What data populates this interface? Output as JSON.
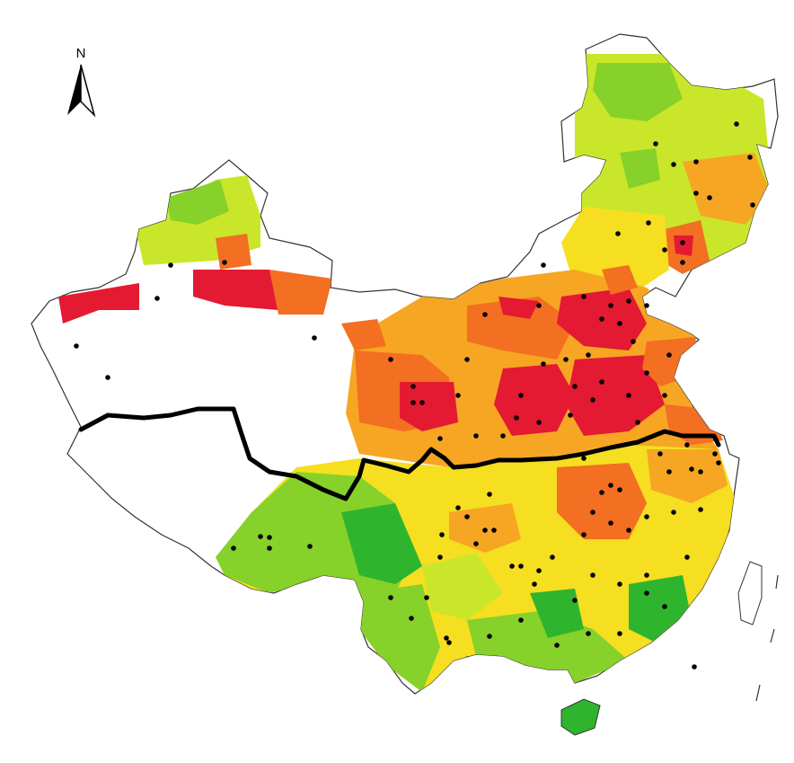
{
  "map": {
    "compass": {
      "label": "N",
      "icon": "north-arrow-icon"
    },
    "colors": {
      "very_high": "#e31a32",
      "high": "#f36f21",
      "medium_high": "#f6a623",
      "medium": "#f6de21",
      "medium_low": "#c9e62a",
      "low": "#86d12a",
      "very_low": "#2fb52d",
      "no_data": "#ffffff",
      "outline": "#333333",
      "divide_line": "#000000",
      "station_dot": "#000000"
    },
    "legend_items": [],
    "divide_line": "qinling-huaihe-line"
  }
}
